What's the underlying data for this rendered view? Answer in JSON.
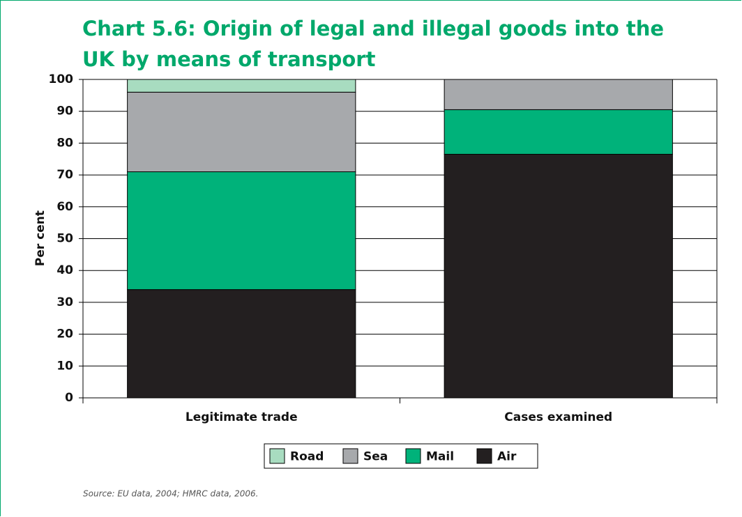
{
  "chart_data": {
    "type": "stacked_bar",
    "title": "Chart 5.6: Origin of legal and illegal goods into the UK by means of transport",
    "ylabel": "Per cent",
    "categories": [
      "Legitimate trade",
      "Cases examined"
    ],
    "series": [
      {
        "name": "Road",
        "color": "#a8dcc0",
        "values": [
          4,
          0
        ]
      },
      {
        "name": "Sea",
        "color": "#a7a9ac",
        "values": [
          25,
          9.5
        ]
      },
      {
        "name": "Mail",
        "color": "#00b27a",
        "values": [
          37,
          14
        ]
      },
      {
        "name": "Air",
        "color": "#231f20",
        "values": [
          34,
          76.5
        ]
      }
    ],
    "ylim": [
      0,
      100
    ],
    "yticks": [
      0,
      10,
      20,
      30,
      40,
      50,
      60,
      70,
      80,
      90,
      100
    ],
    "grid": true,
    "source": "Source: EU data, 2004; HMRC data, 2006."
  }
}
